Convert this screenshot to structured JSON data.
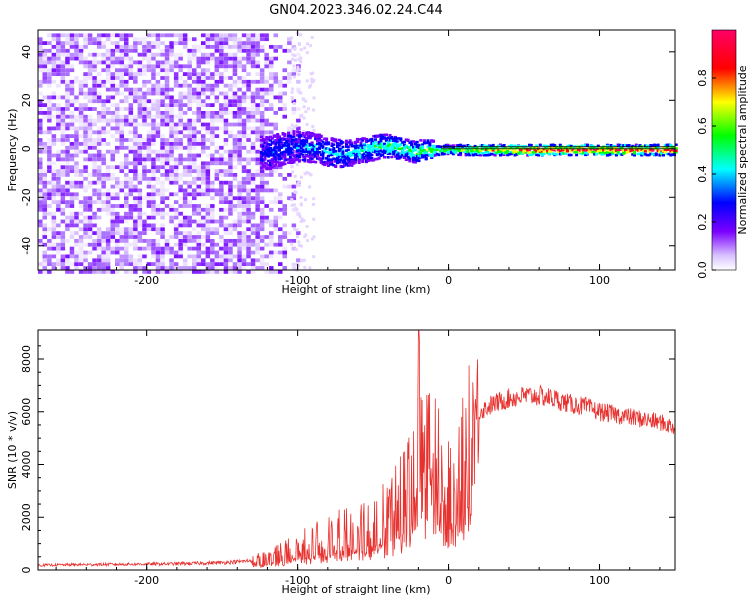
{
  "title": "GN04.2023.346.02.24.C44",
  "chart_data": [
    {
      "type": "heatmap",
      "title": "GN04.2023.346.02.24.C44",
      "xlabel": "Height of straight line (km)",
      "ylabel": "Frequency (Hz)",
      "xlim": [
        -272,
        150
      ],
      "ylim": [
        -50,
        49
      ],
      "xticks": [
        -200,
        -100,
        0,
        100
      ],
      "yticks": [
        -40,
        -20,
        0,
        20,
        40
      ],
      "colorbar": {
        "label": "Normalized spectral amplitude",
        "range": [
          0.0,
          1.0
        ],
        "ticks": [
          "0.0",
          "0.2",
          "0.4",
          "0.6",
          "0.8"
        ],
        "colormap": [
          "#f0e6ff",
          "#7a00ff",
          "#0000ff",
          "#00ffff",
          "#00ff00",
          "#ffff00",
          "#ff0000",
          "#ff0066"
        ]
      },
      "regions": [
        {
          "x_range": [
            -272,
            -120
          ],
          "description_level": 0.15
        },
        {
          "x_range": [
            -120,
            -10
          ],
          "description_level": 0.45
        },
        {
          "x_range": [
            -10,
            150
          ],
          "description_level": 0.85
        }
      ],
      "reference_line_y": 0
    },
    {
      "type": "line",
      "xlabel": "Height of straight line (km)",
      "ylabel": "SNR (10 * v/v)",
      "xlim": [
        -272,
        150
      ],
      "ylim": [
        0,
        9100
      ],
      "xticks": [
        -200,
        -100,
        0,
        100
      ],
      "yticks": [
        0,
        2000,
        4000,
        6000,
        8000
      ],
      "series": [
        {
          "name": "SNR",
          "color": "#e8322f",
          "x": [
            -272,
            -250,
            -230,
            -210,
            -190,
            -170,
            -150,
            -135,
            -125,
            -115,
            -105,
            -95,
            -85,
            -75,
            -65,
            -55,
            -45,
            -38,
            -32,
            -28,
            -24,
            -22,
            -20,
            -18,
            -14,
            -10,
            -6,
            -2,
            2,
            6,
            10,
            14,
            20,
            30,
            40,
            50,
            60,
            70,
            80,
            90,
            100,
            110,
            120,
            130,
            140,
            150
          ],
          "y": [
            180,
            200,
            210,
            220,
            230,
            250,
            280,
            330,
            420,
            600,
            850,
            1000,
            1200,
            1400,
            1600,
            1800,
            2000,
            2400,
            2800,
            3300,
            4200,
            6000,
            8800,
            5000,
            5200,
            4800,
            4200,
            3200,
            3600,
            4300,
            5000,
            5400,
            6000,
            6300,
            6500,
            6600,
            6600,
            6500,
            6300,
            6200,
            6000,
            5900,
            5800,
            5700,
            5600,
            5400
          ]
        }
      ]
    }
  ]
}
